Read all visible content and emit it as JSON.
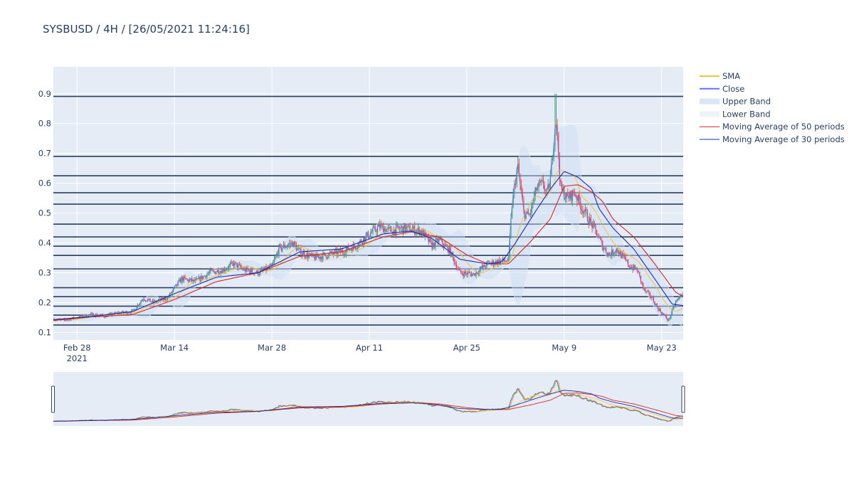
{
  "title": "SYSBUSD / 4H / [26/05/2021 11:24:16]",
  "colors": {
    "plot_bg": "#e5ecf6",
    "grid": "#ffffff",
    "level_line": "#2a3f5f",
    "increasing": "#3d9970",
    "decreasing": "#ff4136",
    "sma": "#f5c040",
    "close": "#636efa",
    "band": "#c9dcf5",
    "ma50": "#d62728",
    "ma30": "#1f2ca8"
  },
  "chart_data": {
    "type": "line",
    "ylim": [
      0.075,
      0.99
    ],
    "yticks": [
      0.1,
      0.2,
      0.3,
      0.4,
      0.5,
      0.6,
      0.7,
      0.8,
      0.9
    ],
    "ytick_labels": [
      "0.1",
      "0.2",
      "0.3",
      "0.4",
      "0.5",
      "0.6",
      "0.7",
      "0.8",
      "0.9"
    ],
    "xlim_days": [
      -3.4,
      87.1
    ],
    "xticks": [
      {
        "day": 0,
        "label": "Feb 28",
        "sub": "2021"
      },
      {
        "day": 14,
        "label": "Mar 14",
        "sub": ""
      },
      {
        "day": 28,
        "label": "Mar 28",
        "sub": ""
      },
      {
        "day": 42,
        "label": "Apr 11",
        "sub": ""
      },
      {
        "day": 56,
        "label": "Apr 25",
        "sub": ""
      },
      {
        "day": 70,
        "label": "May 9",
        "sub": ""
      },
      {
        "day": 84,
        "label": "May 23",
        "sub": ""
      }
    ],
    "levels": [
      0.891,
      0.69,
      0.625,
      0.568,
      0.53,
      0.463,
      0.42,
      0.389,
      0.358,
      0.313,
      0.25,
      0.22,
      0.188,
      0.158,
      0.125
    ],
    "price_anchors": [
      [
        -3.4,
        0.145
      ],
      [
        -2,
        0.14
      ],
      [
        0,
        0.15
      ],
      [
        2,
        0.16
      ],
      [
        4,
        0.155
      ],
      [
        6,
        0.165
      ],
      [
        8,
        0.17
      ],
      [
        9.5,
        0.215
      ],
      [
        11,
        0.2
      ],
      [
        13,
        0.215
      ],
      [
        15,
        0.28
      ],
      [
        17,
        0.27
      ],
      [
        19,
        0.3
      ],
      [
        21,
        0.31
      ],
      [
        22.5,
        0.33
      ],
      [
        24,
        0.31
      ],
      [
        26,
        0.3
      ],
      [
        28,
        0.32
      ],
      [
        29,
        0.38
      ],
      [
        31,
        0.4
      ],
      [
        32,
        0.37
      ],
      [
        34,
        0.35
      ],
      [
        36,
        0.36
      ],
      [
        38,
        0.37
      ],
      [
        40,
        0.39
      ],
      [
        42,
        0.43
      ],
      [
        43.5,
        0.455
      ],
      [
        45,
        0.44
      ],
      [
        47,
        0.45
      ],
      [
        48,
        0.445
      ],
      [
        49.5,
        0.44
      ],
      [
        51,
        0.39
      ],
      [
        52,
        0.41
      ],
      [
        53.5,
        0.375
      ],
      [
        55,
        0.3
      ],
      [
        57,
        0.295
      ],
      [
        59,
        0.33
      ],
      [
        61,
        0.34
      ],
      [
        62,
        0.34
      ],
      [
        62.5,
        0.53
      ],
      [
        63.3,
        0.66
      ],
      [
        64.2,
        0.5
      ],
      [
        65,
        0.49
      ],
      [
        66,
        0.58
      ],
      [
        67,
        0.6
      ],
      [
        67.5,
        0.56
      ],
      [
        68,
        0.61
      ],
      [
        68.8,
        0.83
      ],
      [
        69.5,
        0.58
      ],
      [
        70.5,
        0.55
      ],
      [
        71.5,
        0.57
      ],
      [
        72.5,
        0.52
      ],
      [
        73.5,
        0.48
      ],
      [
        74.5,
        0.44
      ],
      [
        75.5,
        0.39
      ],
      [
        76.5,
        0.36
      ],
      [
        77.5,
        0.38
      ],
      [
        78.5,
        0.35
      ],
      [
        79.5,
        0.32
      ],
      [
        80.5,
        0.31
      ],
      [
        81.5,
        0.24
      ],
      [
        82.5,
        0.22
      ],
      [
        83.5,
        0.18
      ],
      [
        85,
        0.14
      ],
      [
        86,
        0.2
      ],
      [
        87.1,
        0.235
      ]
    ],
    "ma50_anchors": [
      [
        -3.4,
        0.14
      ],
      [
        2,
        0.152
      ],
      [
        8,
        0.16
      ],
      [
        14,
        0.21
      ],
      [
        20,
        0.27
      ],
      [
        26,
        0.3
      ],
      [
        32,
        0.355
      ],
      [
        38,
        0.37
      ],
      [
        44,
        0.42
      ],
      [
        48,
        0.437
      ],
      [
        52,
        0.42
      ],
      [
        56,
        0.36
      ],
      [
        59,
        0.33
      ],
      [
        62,
        0.33
      ],
      [
        65,
        0.4
      ],
      [
        68,
        0.48
      ],
      [
        70,
        0.59
      ],
      [
        72,
        0.595
      ],
      [
        74,
        0.57
      ],
      [
        75.5,
        0.54
      ],
      [
        77,
        0.48
      ],
      [
        80,
        0.42
      ],
      [
        83,
        0.33
      ],
      [
        86,
        0.235
      ],
      [
        87.1,
        0.22
      ]
    ],
    "ma30_anchors": [
      [
        -3.4,
        0.143
      ],
      [
        2,
        0.153
      ],
      [
        8,
        0.17
      ],
      [
        14,
        0.23
      ],
      [
        20,
        0.285
      ],
      [
        26,
        0.3
      ],
      [
        32,
        0.37
      ],
      [
        38,
        0.38
      ],
      [
        44,
        0.43
      ],
      [
        48,
        0.44
      ],
      [
        51,
        0.415
      ],
      [
        55,
        0.345
      ],
      [
        59,
        0.33
      ],
      [
        61,
        0.335
      ],
      [
        63,
        0.4
      ],
      [
        66,
        0.51
      ],
      [
        68,
        0.58
      ],
      [
        70,
        0.64
      ],
      [
        72,
        0.62
      ],
      [
        74,
        0.58
      ],
      [
        75,
        0.515
      ],
      [
        77,
        0.45
      ],
      [
        80,
        0.38
      ],
      [
        83,
        0.28
      ],
      [
        85.5,
        0.195
      ],
      [
        87.1,
        0.19
      ]
    ],
    "legend": [
      {
        "label": "SMA",
        "kind": "sma"
      },
      {
        "label": "Close",
        "kind": "close"
      },
      {
        "label": "Upper Band",
        "kind": "band_upper"
      },
      {
        "label": "Lower Band",
        "kind": "band_lower"
      },
      {
        "label": "Moving Average of 50 periods",
        "kind": "ma50"
      },
      {
        "label": "Moving Average of 30 periods",
        "kind": "ma30"
      }
    ],
    "legend_position": "right",
    "rangeslider": true,
    "grid": true
  }
}
